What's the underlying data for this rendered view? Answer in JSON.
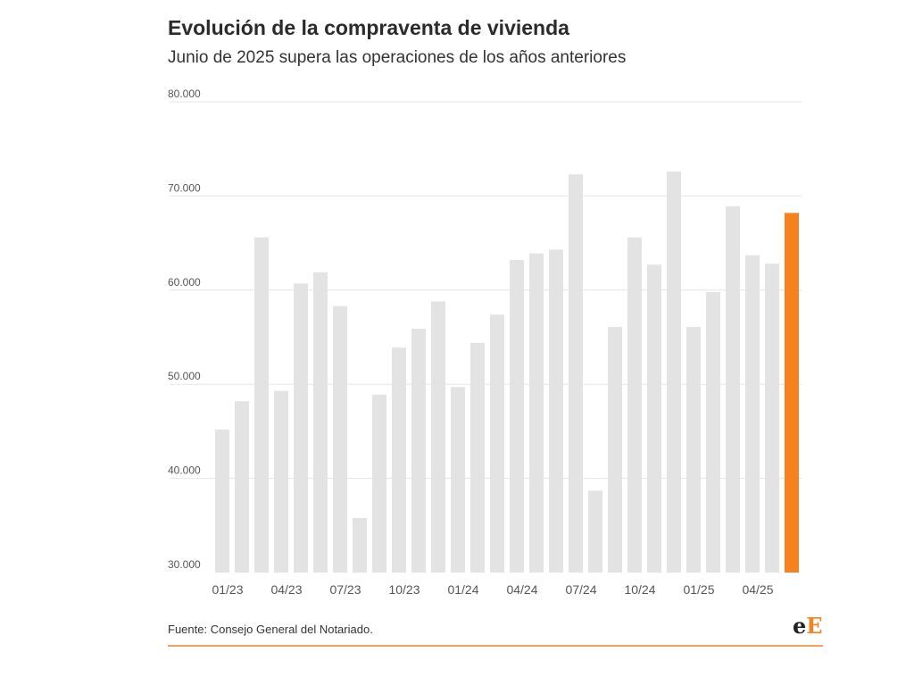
{
  "header": {
    "title": "Evolución de la compraventa de vivienda",
    "subtitle": "Junio de 2025 supera las operaciones de los años anteriores"
  },
  "footer": {
    "source": "Fuente: Consejo General del Notariado.",
    "logo_part1": "e",
    "logo_part2": "E"
  },
  "colors": {
    "bar_default": "#e3e3e3",
    "bar_highlight": "#f5821f",
    "grid": "#e6e6e6",
    "tick_text": "#555555",
    "accent": "#f5821f"
  },
  "chart_data": {
    "type": "bar",
    "title": "Evolución de la compraventa de vivienda",
    "subtitle": "Junio de 2025 supera las operaciones de los años anteriores",
    "xlabel": "",
    "ylabel": "",
    "ylim": [
      30000,
      80000
    ],
    "yticks": [
      30000,
      40000,
      50000,
      60000,
      70000,
      80000
    ],
    "ytick_labels": [
      "30.000",
      "40.000",
      "50.000",
      "60.000",
      "70.000",
      "80.000"
    ],
    "grid": true,
    "categories": [
      "01/23",
      "02/23",
      "03/23",
      "04/23",
      "05/23",
      "06/23",
      "07/23",
      "08/23",
      "09/23",
      "10/23",
      "11/23",
      "12/23",
      "01/24",
      "02/24",
      "03/24",
      "04/24",
      "05/24",
      "06/24",
      "07/24",
      "08/24",
      "09/24",
      "10/24",
      "11/24",
      "12/24",
      "01/25",
      "02/25",
      "03/25",
      "04/25",
      "05/25",
      "06/25"
    ],
    "xtick_labels_shown": [
      "01/23",
      "04/23",
      "07/23",
      "10/23",
      "01/24",
      "04/24",
      "07/24",
      "10/24",
      "01/25",
      "04/25"
    ],
    "values": [
      45200,
      48200,
      65600,
      49300,
      60700,
      61900,
      58300,
      35800,
      48900,
      53900,
      55900,
      58800,
      49700,
      54400,
      57400,
      63200,
      63900,
      64300,
      72300,
      38700,
      56100,
      65600,
      62700,
      72600,
      56100,
      59800,
      68900,
      63700,
      62800,
      68200
    ],
    "highlight_index": 29
  }
}
